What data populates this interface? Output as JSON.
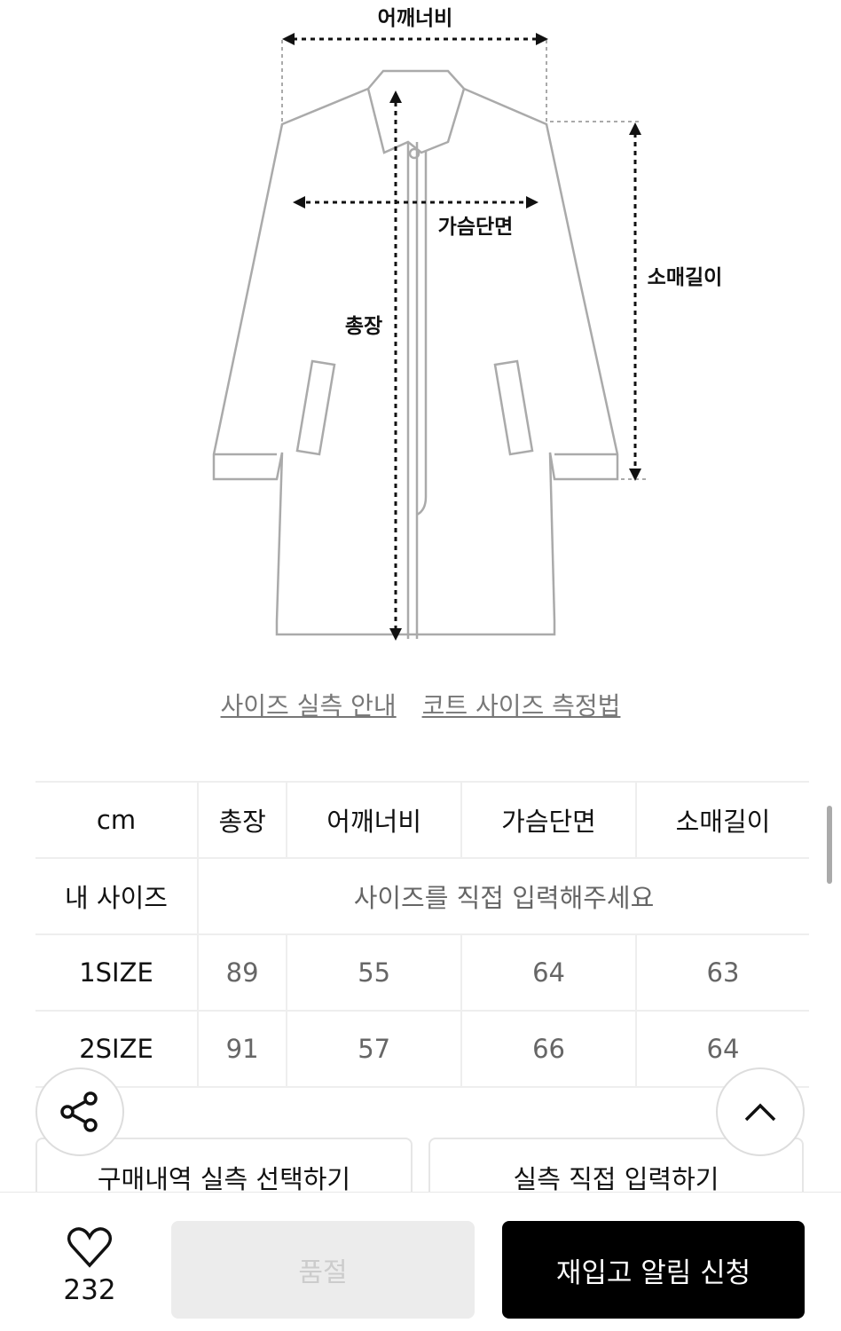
{
  "diagram": {
    "shoulder": "어깨너비",
    "chest": "가슴단면",
    "length": "총장",
    "sleeve": "소매길이"
  },
  "links": {
    "size_guide": "사이즈 실측 안내",
    "coat_method": "코트 사이즈 측정법"
  },
  "table": {
    "headers": [
      "cm",
      "총장",
      "어깨너비",
      "가슴단면",
      "소매길이"
    ],
    "my_size": {
      "label": "내 사이즈",
      "placeholder": "사이즈를 직접 입력해주세요"
    },
    "rows": [
      {
        "size": "1SIZE",
        "values": [
          "89",
          "55",
          "64",
          "63"
        ]
      },
      {
        "size": "2SIZE",
        "values": [
          "91",
          "57",
          "66",
          "64"
        ]
      }
    ]
  },
  "actions": {
    "purchase_select": "구매내역 실측 선택하기",
    "direct_input": "실측 직접 입력하기"
  },
  "bottom": {
    "likes": "232",
    "sold_out": "품절",
    "restock": "재입고 알림 신청"
  }
}
